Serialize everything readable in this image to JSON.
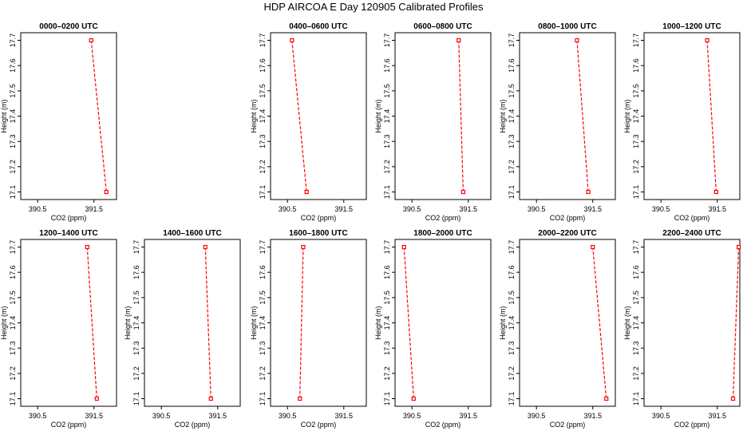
{
  "title": "HDP AIRCOA E  Day 120905  Calibrated Profiles",
  "chart_data": {
    "type": "line",
    "xlabel": "CO2 (ppm)",
    "ylabel": "Height (m)",
    "xlim": [
      390.2,
      391.9
    ],
    "ylim": [
      17.07,
      17.73
    ],
    "xticks": [
      390.5,
      391.5
    ],
    "yticks": [
      17.1,
      17.2,
      17.3,
      17.4,
      17.5,
      17.6,
      17.7
    ],
    "line_color": "#ff0000",
    "panels": [
      {
        "title": "0000–0200 UTC",
        "points": [
          [
            391.45,
            17.7
          ],
          [
            391.72,
            17.1
          ]
        ]
      },
      {
        "title": "",
        "points": []
      },
      {
        "title": "0400–0600 UTC",
        "points": [
          [
            390.58,
            17.7
          ],
          [
            390.84,
            17.1
          ]
        ]
      },
      {
        "title": "0600–0800 UTC",
        "points": [
          [
            391.33,
            17.7
          ],
          [
            391.41,
            17.1
          ]
        ]
      },
      {
        "title": "0800–1000 UTC",
        "points": [
          [
            391.22,
            17.7
          ],
          [
            391.42,
            17.1
          ]
        ]
      },
      {
        "title": "1000–1200 UTC",
        "points": [
          [
            391.32,
            17.7
          ],
          [
            391.48,
            17.1
          ]
        ]
      },
      {
        "title": "1200–1400 UTC",
        "points": [
          [
            391.38,
            17.7
          ],
          [
            391.55,
            17.1
          ]
        ]
      },
      {
        "title": "1400–1600 UTC",
        "points": [
          [
            391.28,
            17.7
          ],
          [
            391.38,
            17.1
          ]
        ]
      },
      {
        "title": "1600–1800 UTC",
        "points": [
          [
            390.78,
            17.7
          ],
          [
            390.72,
            17.1
          ]
        ]
      },
      {
        "title": "1800–2000 UTC",
        "points": [
          [
            390.36,
            17.7
          ],
          [
            390.53,
            17.1
          ]
        ]
      },
      {
        "title": "2000–2200 UTC",
        "points": [
          [
            391.5,
            17.7
          ],
          [
            391.74,
            17.1
          ]
        ]
      },
      {
        "title": "2200–2400 UTC",
        "points": [
          [
            391.88,
            17.7
          ],
          [
            391.78,
            17.1
          ]
        ]
      }
    ]
  }
}
